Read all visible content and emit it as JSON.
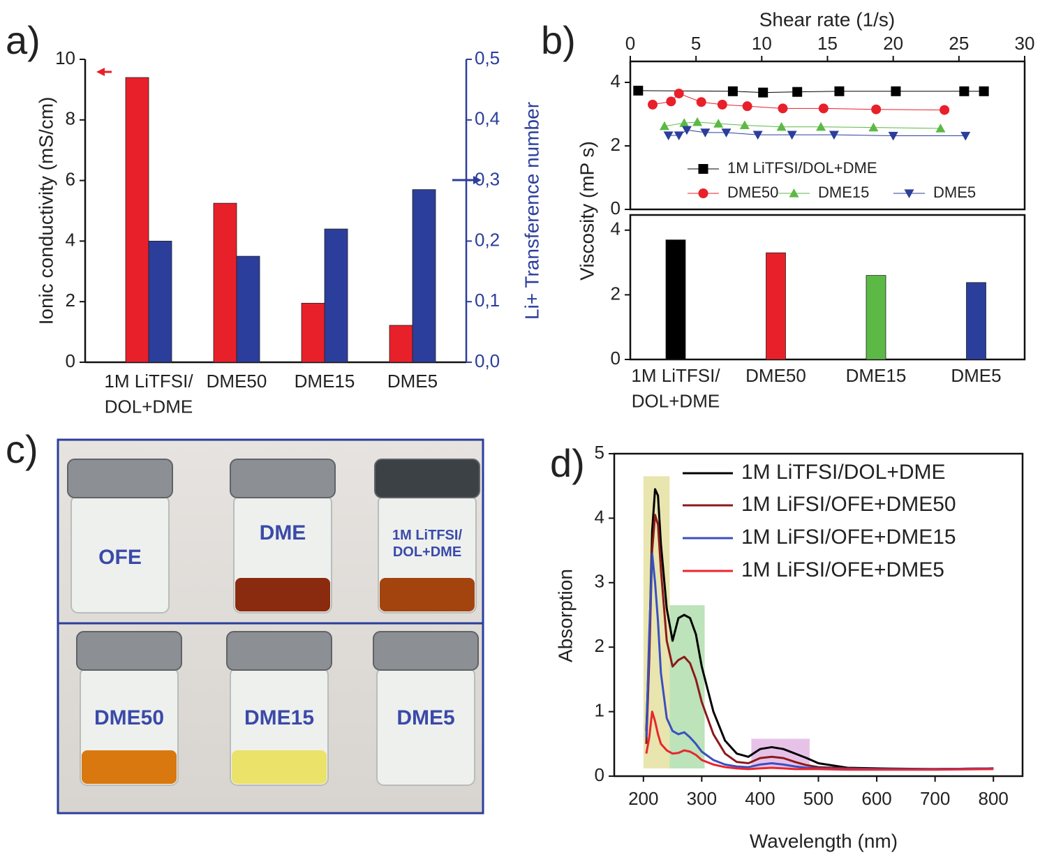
{
  "chart_data": [
    {
      "type": "bar",
      "label": "a)",
      "categories": [
        "1M LiTFSI/\nDOL+DME",
        "DME50",
        "DME15",
        "DME5"
      ],
      "series": [
        {
          "color": "#e8202a",
          "values": [
            9.4,
            5.25,
            1.95,
            1.22
          ]
        },
        {
          "color": "#2b3e9b",
          "axis": "y2",
          "values": [
            0.2,
            0.175,
            0.22,
            0.285
          ]
        }
      ],
      "ylabel": "Ionic conductivity (mS/cm)",
      "y2label": "Li+ Transference number",
      "ylim": [
        0,
        10
      ],
      "yticks": [
        0,
        2,
        4,
        6,
        8,
        10
      ],
      "y2lim": [
        0,
        0.5
      ],
      "y2ticks": [
        {
          "value": 0,
          "label": "0,0"
        },
        {
          "value": 0.1,
          "label": "0,1"
        },
        {
          "value": 0.2,
          "label": "0,2"
        },
        {
          "value": 0.3,
          "label": "0,3"
        },
        {
          "value": 0.4,
          "label": "0,4"
        },
        {
          "value": 0.5,
          "label": "0,5"
        }
      ],
      "y2color": "#2b3e9b",
      "frame": "open"
    },
    {
      "type": "line",
      "label": "b)",
      "xaxis": "top",
      "frame": "box",
      "xlabel": "Shear rate (1/s)",
      "ylabel": "Viscosity (mP s)",
      "xlim": [
        0,
        30
      ],
      "xticks": [
        0,
        5,
        10,
        15,
        20,
        25,
        30
      ],
      "ylim": [
        0,
        4.66
      ],
      "yticks": [
        0,
        2,
        4
      ],
      "series": [
        {
          "name": "1M LiTFSI/DOL+DME",
          "color": "#000000",
          "marker": "square",
          "x": [
            0.6,
            7.8,
            10.1,
            12.7,
            15.9,
            20.2,
            25.4,
            26.9
          ],
          "values": [
            3.74,
            3.72,
            3.68,
            3.7,
            3.72,
            3.72,
            3.72,
            3.72
          ]
        },
        {
          "name": "DME50",
          "color": "#e8202a",
          "marker": "circle",
          "x": [
            1.7,
            3.1,
            3.7,
            5.4,
            7.0,
            8.9,
            11.6,
            14.7,
            18.7,
            23.9
          ],
          "values": [
            3.3,
            3.4,
            3.65,
            3.38,
            3.3,
            3.25,
            3.18,
            3.18,
            3.15,
            3.13
          ]
        },
        {
          "name": "DME15",
          "color": "#5cb946",
          "marker": "triangle-up",
          "x": [
            2.6,
            4.1,
            5.1,
            6.7,
            8.7,
            11.5,
            14.5,
            18.5,
            23.6
          ],
          "values": [
            2.62,
            2.72,
            2.75,
            2.7,
            2.65,
            2.6,
            2.6,
            2.58,
            2.55
          ]
        },
        {
          "name": "DME5",
          "color": "#2b3e9b",
          "marker": "triangle-down",
          "x": [
            2.9,
            3.7,
            4.3,
            5.7,
            7.3,
            9.7,
            12.3,
            15.5,
            20.0,
            25.5
          ],
          "values": [
            2.33,
            2.33,
            2.5,
            2.42,
            2.42,
            2.35,
            2.35,
            2.35,
            2.32,
            2.32
          ]
        }
      ]
    },
    {
      "type": "bar",
      "frame": "box",
      "categories": [
        "1M LiTFSI/\nDOL+DME",
        "DME50",
        "DME15",
        "DME5"
      ],
      "series": [
        {
          "values": [
            3.7,
            3.3,
            2.6,
            2.38
          ]
        }
      ],
      "colors": [
        "#000000",
        "#e8202a",
        "#5cb946",
        "#2b3e9b"
      ],
      "ylim": [
        0,
        4.47
      ],
      "yticks": [
        0,
        2,
        4
      ]
    },
    {
      "type": "line",
      "label": "d)",
      "frame": "box",
      "xlabel": "Wavelength (nm)",
      "ylabel": "Absorption",
      "xlim": [
        150,
        850
      ],
      "xticks": [
        200,
        300,
        400,
        500,
        600,
        700,
        800
      ],
      "ylim": [
        0,
        5
      ],
      "yticks": [
        0,
        1,
        2,
        3,
        4,
        5
      ],
      "highlights": [
        {
          "x": [
            200,
            245
          ],
          "y": [
            0.12,
            4.65
          ],
          "color": "#d8d47a"
        },
        {
          "x": [
            245,
            305
          ],
          "y": [
            0.12,
            2.65
          ],
          "color": "#8fd08a"
        },
        {
          "x": [
            385,
            485
          ],
          "y": [
            0.12,
            0.58
          ],
          "color": "#d79ad8"
        }
      ],
      "x": [
        205,
        210,
        215,
        220,
        225,
        230,
        240,
        250,
        260,
        270,
        280,
        290,
        300,
        320,
        340,
        360,
        380,
        400,
        420,
        440,
        460,
        480,
        500,
        550,
        600,
        700,
        800
      ],
      "series": [
        {
          "name": "1M LiTFSI/DOL+DME",
          "color": "#000000",
          "values": [
            0.7,
            2.0,
            3.8,
            4.45,
            4.35,
            3.6,
            2.6,
            2.1,
            2.45,
            2.5,
            2.45,
            2.2,
            1.7,
            1.0,
            0.55,
            0.35,
            0.3,
            0.42,
            0.45,
            0.42,
            0.35,
            0.28,
            0.2,
            0.13,
            0.12,
            0.11,
            0.12
          ]
        },
        {
          "name": "1M LiFSI/OFE+DME50",
          "color": "#8b1a1a",
          "values": [
            0.5,
            1.8,
            3.5,
            4.05,
            3.9,
            3.2,
            2.1,
            1.7,
            1.8,
            1.85,
            1.75,
            1.5,
            1.15,
            0.65,
            0.35,
            0.22,
            0.2,
            0.28,
            0.3,
            0.28,
            0.22,
            0.17,
            0.14,
            0.12,
            0.11,
            0.11,
            0.12
          ]
        },
        {
          "name": "1M LiFSI/OFE+DME15",
          "color": "#3a4fc0",
          "values": [
            0.6,
            2.2,
            3.45,
            3.0,
            2.4,
            1.6,
            0.9,
            0.7,
            0.65,
            0.68,
            0.6,
            0.5,
            0.38,
            0.25,
            0.18,
            0.15,
            0.14,
            0.18,
            0.2,
            0.18,
            0.15,
            0.13,
            0.12,
            0.11,
            0.11,
            0.11,
            0.12
          ]
        },
        {
          "name": "1M LiFSI/OFE+DME5",
          "color": "#e8262e",
          "values": [
            0.35,
            0.6,
            1.0,
            0.85,
            0.65,
            0.5,
            0.4,
            0.35,
            0.36,
            0.4,
            0.38,
            0.33,
            0.25,
            0.18,
            0.14,
            0.12,
            0.11,
            0.12,
            0.13,
            0.12,
            0.11,
            0.11,
            0.11,
            0.1,
            0.1,
            0.1,
            0.11
          ]
        }
      ]
    }
  ],
  "photo": {
    "label": "c)",
    "vials": [
      "OFE",
      "DME",
      "1M LiTFSI/\nDOL+DME",
      "DME50",
      "DME15",
      "DME5"
    ]
  }
}
